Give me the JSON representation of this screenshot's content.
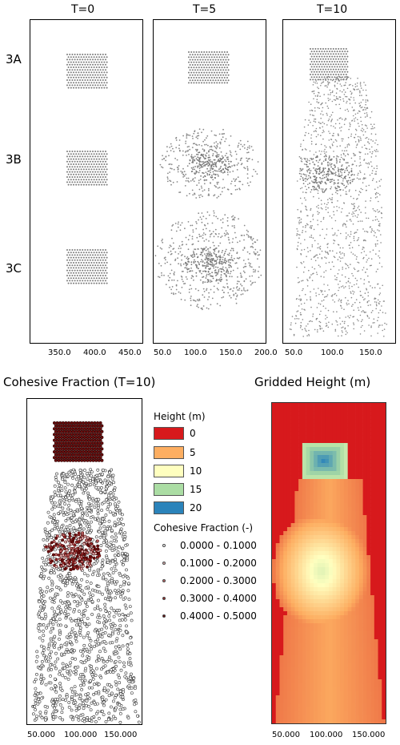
{
  "top": {
    "time_titles": [
      "T=0",
      "T=5",
      "T=10"
    ],
    "row_labels": [
      "3A",
      "3B",
      "3C"
    ],
    "axis_ticks": [
      [
        "350.0",
        "400.0",
        "450.0"
      ],
      [
        "50.0",
        "100.0",
        "150.0",
        "200.0"
      ],
      [
        "50.0",
        "100.0",
        "150.0"
      ]
    ]
  },
  "bottom_left": {
    "title": "Cohesive Fraction (T=10)",
    "axis_ticks": [
      "50.000",
      "100.000",
      "150.000"
    ]
  },
  "bottom_right": {
    "title": "Gridded Height (m)",
    "axis_ticks": [
      "50.000",
      "100.000",
      "150.000"
    ]
  },
  "legend": {
    "height_title": "Height (m)",
    "height_items": [
      {
        "label": "0",
        "color": "#d7191c"
      },
      {
        "label": "5",
        "color": "#fdae61"
      },
      {
        "label": "10",
        "color": "#ffffbf"
      },
      {
        "label": "15",
        "color": "#abdda4"
      },
      {
        "label": "20",
        "color": "#2b83ba"
      }
    ],
    "cohesive_title": "Cohesive Fraction (-)",
    "cohesive_items": [
      {
        "label": "0.0000 - 0.1000",
        "color": "#ffffff"
      },
      {
        "label": "0.1000 - 0.2000",
        "color": "#e8b7b7"
      },
      {
        "label": "0.2000 - 0.3000",
        "color": "#c96a6a"
      },
      {
        "label": "0.3000 - 0.4000",
        "color": "#9e2a2a"
      },
      {
        "label": "0.4000 - 0.5000",
        "color": "#6b0d0d"
      }
    ]
  }
}
